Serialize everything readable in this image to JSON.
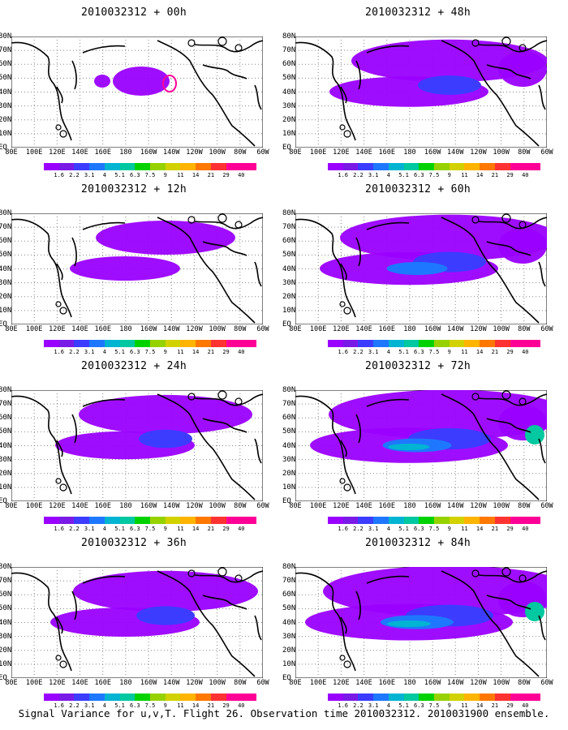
{
  "panels": [
    {
      "title": "2010032312 + 00h",
      "intensity": 0.3
    },
    {
      "title": "2010032312 + 48h",
      "intensity": 0.65
    },
    {
      "title": "2010032312 + 12h",
      "intensity": 0.4
    },
    {
      "title": "2010032312 + 60h",
      "intensity": 0.75
    },
    {
      "title": "2010032312 + 24h",
      "intensity": 0.55
    },
    {
      "title": "2010032312 + 72h",
      "intensity": 0.85
    },
    {
      "title": "2010032312 + 36h",
      "intensity": 0.6
    },
    {
      "title": "2010032312 + 84h",
      "intensity": 0.9
    }
  ],
  "lat_labels": [
    "80N",
    "70N",
    "60N",
    "50N",
    "40N",
    "30N",
    "20N",
    "10N",
    "EQ"
  ],
  "lon_labels": [
    "80E",
    "100E",
    "120E",
    "140E",
    "160E",
    "180",
    "160W",
    "140W",
    "120W",
    "100W",
    "80W",
    "60W"
  ],
  "scale_labels": [
    "1.6",
    "2.2",
    "3.1",
    "4",
    "5.1",
    "6.3",
    "7.5",
    "9",
    "11",
    "14",
    "21",
    "29",
    "40"
  ],
  "scale_colors": [
    "#9a00ff",
    "#7a1ae6",
    "#3c3cff",
    "#1e78ff",
    "#00b4d2",
    "#00c8a0",
    "#00d200",
    "#96d200",
    "#d2d200",
    "#ffb400",
    "#ff7800",
    "#ff3232",
    "#ff0096",
    "#ff0096"
  ],
  "caption": "Signal Variance for u,v,T. Flight 26. Observation time 2010032312. 2010031900 ensemble."
}
